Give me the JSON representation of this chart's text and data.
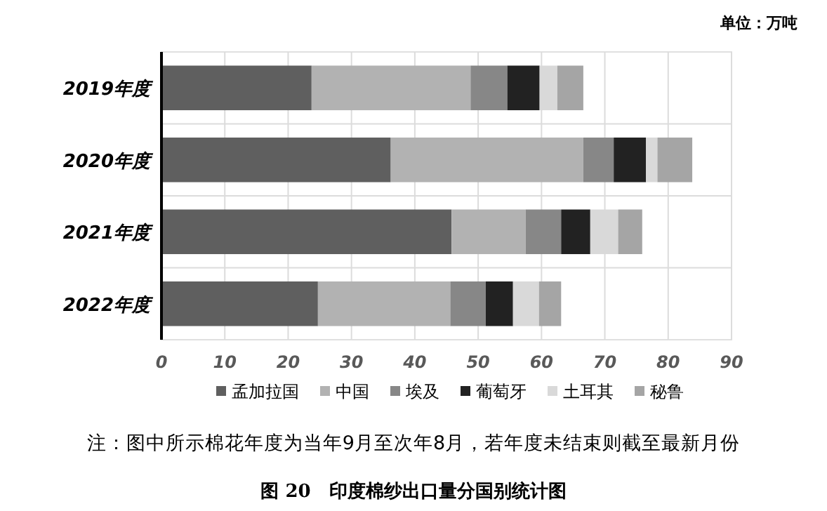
{
  "chart_data": {
    "type": "bar",
    "orientation": "horizontal",
    "stacked": true,
    "title": "图 20　印度棉纱出口量分国别统计图",
    "annotations": [
      "单位：万吨",
      "注：图中所示棉花年度为当年9月至次年8月，若年度未结束则截至最新月份"
    ],
    "categories": [
      "2019年度",
      "2020年度",
      "2021年度",
      "2022年度"
    ],
    "series": [
      {
        "name": "孟加拉国",
        "color": "#5f5f5f",
        "values": [
          23.7,
          36.2,
          45.8,
          24.7
        ]
      },
      {
        "name": "中国",
        "color": "#b2b2b2",
        "values": [
          25.1,
          30.4,
          11.7,
          20.9
        ]
      },
      {
        "name": "埃及",
        "color": "#878787",
        "values": [
          5.8,
          4.8,
          5.6,
          5.6
        ]
      },
      {
        "name": "葡萄牙",
        "color": "#222222",
        "values": [
          5.1,
          5.1,
          4.6,
          4.3
        ]
      },
      {
        "name": "土耳其",
        "color": "#d9d9d9",
        "values": [
          2.8,
          1.8,
          4.4,
          4.1
        ]
      },
      {
        "name": "秘鲁",
        "color": "#a5a5a5",
        "values": [
          4.1,
          5.5,
          3.8,
          3.5
        ]
      }
    ],
    "xlim": [
      0,
      90
    ],
    "xticks": [
      0,
      10,
      20,
      30,
      40,
      50,
      60,
      70,
      80,
      90
    ],
    "grid": true,
    "legend": "bottom"
  }
}
